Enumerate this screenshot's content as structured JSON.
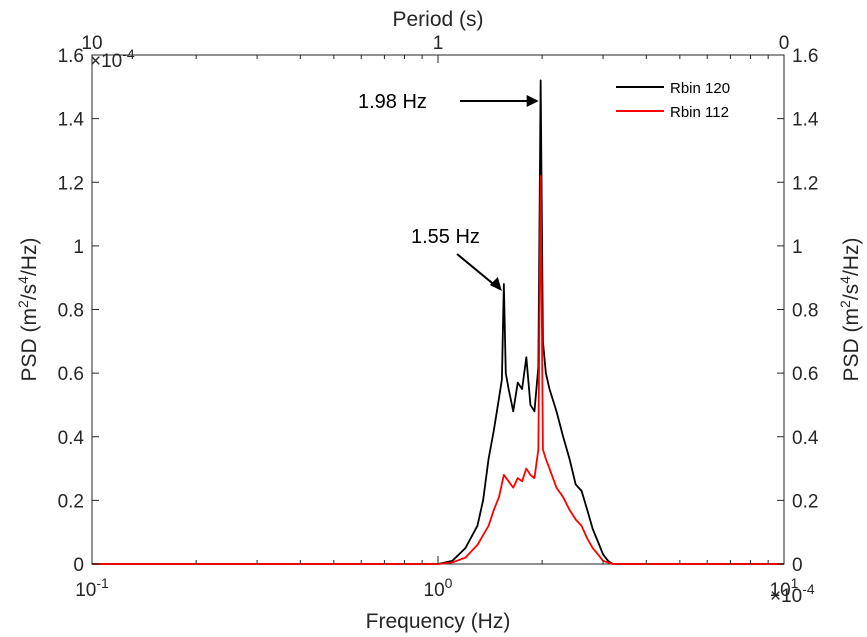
{
  "chart_data": {
    "type": "line",
    "title": "",
    "xlabel": "Frequency (Hz)",
    "ylabel_left": "PSD (m2/s4/Hz)",
    "ylabel_right": "PSD (m2/s4/Hz)",
    "top_xlabel": "Period (s)",
    "x_scale": "log",
    "xlim": [
      0.1,
      10
    ],
    "ylim": [
      0,
      1.6
    ],
    "y_multiplier": "×10-4",
    "bottom_x_ticks": [
      {
        "value": 0.1,
        "base": "10",
        "exp": "-1"
      },
      {
        "value": 1,
        "base": "10",
        "exp": "0"
      },
      {
        "value": 10,
        "base": "10",
        "exp": "1"
      }
    ],
    "top_x_ticks": [
      {
        "value": 0.1,
        "label": "10"
      },
      {
        "value": 1,
        "label": "1"
      },
      {
        "value": 10,
        "label": "0"
      }
    ],
    "y_ticks": [
      "0",
      "0.2",
      "0.4",
      "0.6",
      "0.8",
      "1",
      "1.2",
      "1.4",
      "1.6"
    ],
    "y_tick_values": [
      0,
      0.2,
      0.4,
      0.6,
      0.8,
      1.0,
      1.2,
      1.4,
      1.6
    ],
    "grid": false,
    "legend_position": "top-right",
    "series": [
      {
        "name": "Rbin 120",
        "color": "#000000",
        "x": [
          0.1,
          1.0,
          1.1,
          1.2,
          1.3,
          1.35,
          1.4,
          1.45,
          1.5,
          1.53,
          1.55,
          1.57,
          1.6,
          1.65,
          1.7,
          1.75,
          1.8,
          1.85,
          1.9,
          1.95,
          1.98,
          2.01,
          2.05,
          2.1,
          2.2,
          2.3,
          2.4,
          2.5,
          2.6,
          2.7,
          2.8,
          2.9,
          3.0,
          3.1,
          3.2,
          3.5,
          10
        ],
        "y": [
          0,
          0,
          0.01,
          0.05,
          0.12,
          0.2,
          0.33,
          0.42,
          0.52,
          0.58,
          0.88,
          0.6,
          0.55,
          0.48,
          0.57,
          0.55,
          0.65,
          0.5,
          0.48,
          0.62,
          1.52,
          0.7,
          0.6,
          0.55,
          0.48,
          0.4,
          0.33,
          0.25,
          0.23,
          0.17,
          0.11,
          0.07,
          0.03,
          0.01,
          0.0,
          0,
          0
        ]
      },
      {
        "name": "Rbin 112",
        "color": "#ff0000",
        "x": [
          0.1,
          1.0,
          1.1,
          1.2,
          1.3,
          1.4,
          1.45,
          1.5,
          1.55,
          1.6,
          1.65,
          1.7,
          1.75,
          1.8,
          1.85,
          1.9,
          1.95,
          1.98,
          2.01,
          2.05,
          2.1,
          2.2,
          2.3,
          2.4,
          2.5,
          2.6,
          2.7,
          2.8,
          2.9,
          3.0,
          3.2,
          10
        ],
        "y": [
          0,
          0,
          0.005,
          0.02,
          0.06,
          0.12,
          0.17,
          0.21,
          0.28,
          0.26,
          0.24,
          0.27,
          0.26,
          0.3,
          0.28,
          0.27,
          0.36,
          1.22,
          0.36,
          0.33,
          0.3,
          0.24,
          0.21,
          0.17,
          0.14,
          0.12,
          0.08,
          0.05,
          0.03,
          0.01,
          0.0,
          0
        ]
      }
    ],
    "annotations": [
      {
        "text": "1.98 Hz",
        "x": 1.98,
        "y": 1.52
      },
      {
        "text": "1.55 Hz",
        "x": 1.55,
        "y": 0.88
      }
    ]
  }
}
